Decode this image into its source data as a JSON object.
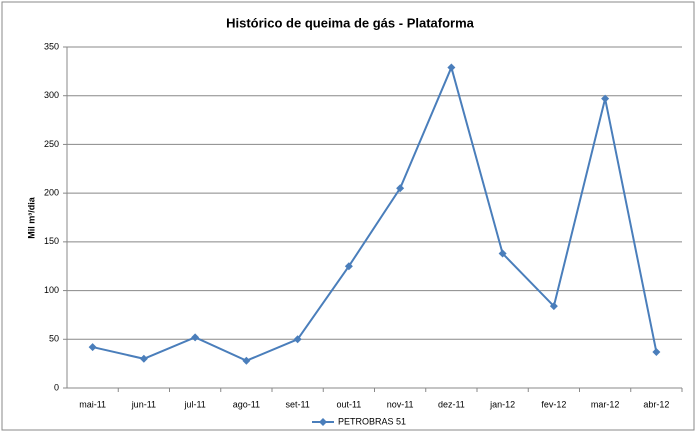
{
  "chart_data": {
    "type": "line",
    "title": "Histórico de queima de gás - Plataforma",
    "y_label": "Mil m³/dia",
    "categories": [
      "mai-11",
      "jun-11",
      "jul-11",
      "ago-11",
      "set-11",
      "out-11",
      "nov-11",
      "dez-11",
      "jan-12",
      "fev-12",
      "mar-12",
      "abr-12"
    ],
    "series": [
      {
        "name": "PETROBRAS 51",
        "color": "#4a7ebb",
        "values": [
          42,
          30,
          52,
          28,
          50,
          125,
          205,
          329,
          138,
          84,
          297,
          37
        ]
      }
    ],
    "ylim": [
      0,
      350
    ],
    "yticks": [
      0,
      50,
      100,
      150,
      200,
      250,
      300,
      350
    ],
    "grid": true,
    "legend": "bottom"
  }
}
